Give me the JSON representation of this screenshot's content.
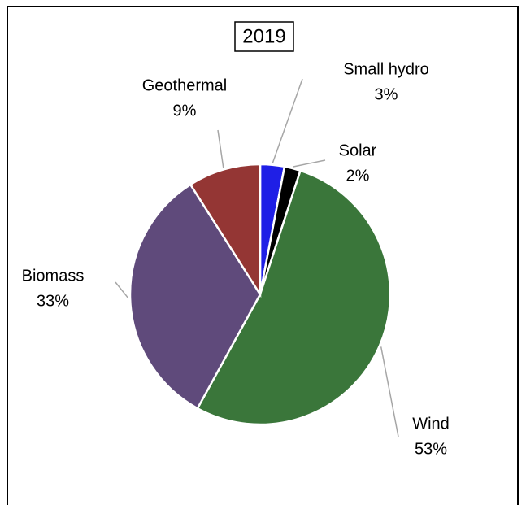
{
  "chart_data": {
    "type": "pie",
    "title": "2019",
    "categories": [
      "Small hydro",
      "Solar",
      "Wind",
      "Biomass",
      "Geothermal"
    ],
    "values": [
      3,
      2,
      53,
      33,
      9
    ],
    "value_labels": [
      "3%",
      "2%",
      "53%",
      "33%",
      "9%"
    ],
    "colors": [
      "#1f1fe6",
      "#000000",
      "#3a763a",
      "#5f4a7b",
      "#943634"
    ]
  }
}
